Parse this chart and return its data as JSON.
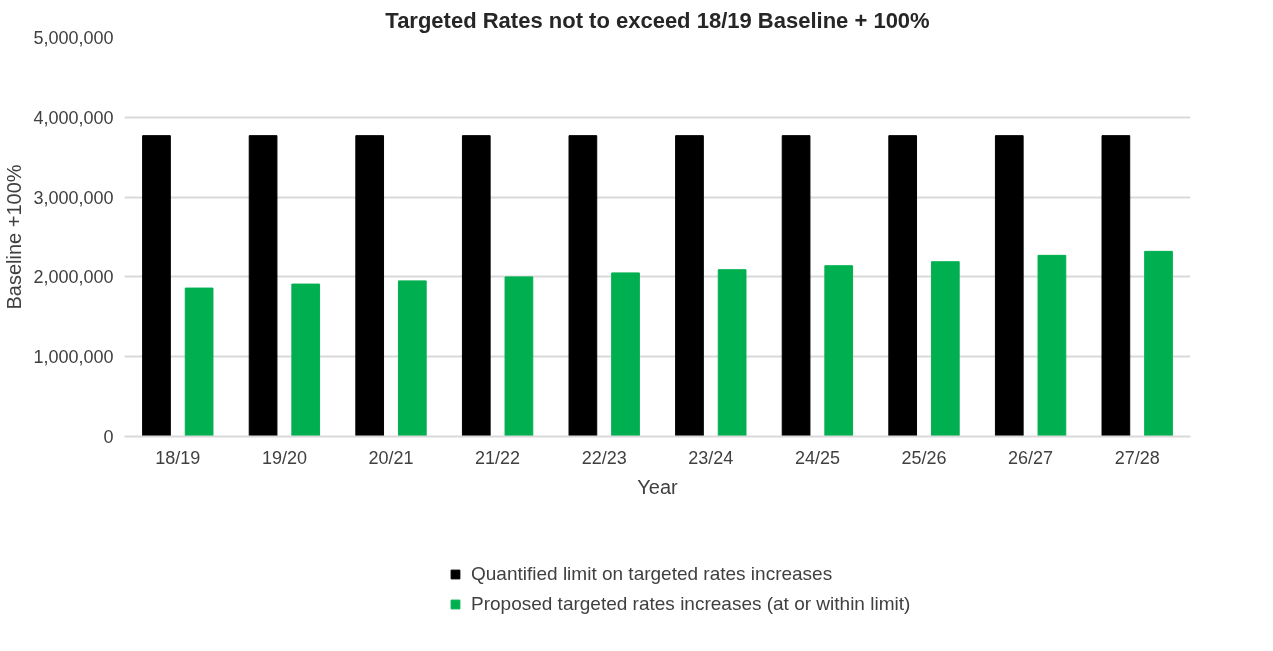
{
  "chart_data": {
    "type": "bar",
    "title": "Targeted Rates not to exceed 18/19 Baseline + 100%",
    "xlabel": "Year",
    "ylabel": "Baseline +100%",
    "categories": [
      "18/19",
      "19/20",
      "20/21",
      "21/22",
      "22/23",
      "23/24",
      "24/25",
      "25/26",
      "26/27",
      "27/28"
    ],
    "series": [
      {
        "name": "Quantified limit on targeted rates increases",
        "color": "#000000",
        "values": [
          3770000,
          3770000,
          3770000,
          3770000,
          3770000,
          3770000,
          3770000,
          3770000,
          3770000,
          3770000
        ]
      },
      {
        "name": "Proposed targeted rates increases (at or within limit)",
        "color": "#00b050",
        "values": [
          1860000,
          1910000,
          1950000,
          2000000,
          2050000,
          2090000,
          2140000,
          2190000,
          2270000,
          2320000
        ]
      }
    ],
    "ylim": [
      0,
      5000000
    ],
    "yticks": [
      {
        "value": 0,
        "label": "0"
      },
      {
        "value": 1000000,
        "label": "1,000,000"
      },
      {
        "value": 2000000,
        "label": "2,000,000"
      },
      {
        "value": 3000000,
        "label": "3,000,000"
      },
      {
        "value": 4000000,
        "label": "4,000,000"
      },
      {
        "value": 5000000,
        "label": "5,000,000"
      }
    ],
    "grid": "y",
    "legend": "bottom"
  }
}
